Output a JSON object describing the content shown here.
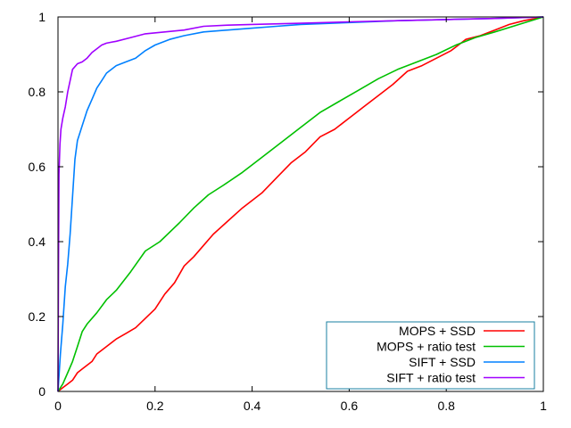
{
  "chart_data": {
    "type": "line",
    "title": "",
    "xlabel": "",
    "ylabel": "",
    "xlim": [
      0,
      1
    ],
    "ylim": [
      0,
      1
    ],
    "grid": false,
    "legend_position": "bottom-right",
    "xticks": [
      "0",
      "0.2",
      "0.4",
      "0.6",
      "0.8",
      "1"
    ],
    "yticks": [
      "0",
      "0.2",
      "0.4",
      "0.6",
      "0.8",
      "1"
    ],
    "series": [
      {
        "name": "MOPS + SSD",
        "color": "#ff0000",
        "points": [
          [
            0,
            0
          ],
          [
            0.01,
            0.01
          ],
          [
            0.02,
            0.02
          ],
          [
            0.03,
            0.03
          ],
          [
            0.04,
            0.05
          ],
          [
            0.05,
            0.06
          ],
          [
            0.07,
            0.08
          ],
          [
            0.08,
            0.1
          ],
          [
            0.1,
            0.12
          ],
          [
            0.12,
            0.14
          ],
          [
            0.14,
            0.155
          ],
          [
            0.16,
            0.17
          ],
          [
            0.18,
            0.195
          ],
          [
            0.2,
            0.22
          ],
          [
            0.22,
            0.26
          ],
          [
            0.24,
            0.29
          ],
          [
            0.26,
            0.335
          ],
          [
            0.28,
            0.36
          ],
          [
            0.3,
            0.39
          ],
          [
            0.32,
            0.42
          ],
          [
            0.35,
            0.455
          ],
          [
            0.38,
            0.49
          ],
          [
            0.42,
            0.53
          ],
          [
            0.45,
            0.57
          ],
          [
            0.48,
            0.61
          ],
          [
            0.51,
            0.64
          ],
          [
            0.54,
            0.68
          ],
          [
            0.57,
            0.7
          ],
          [
            0.6,
            0.73
          ],
          [
            0.63,
            0.76
          ],
          [
            0.66,
            0.79
          ],
          [
            0.69,
            0.82
          ],
          [
            0.72,
            0.855
          ],
          [
            0.75,
            0.87
          ],
          [
            0.78,
            0.89
          ],
          [
            0.81,
            0.91
          ],
          [
            0.84,
            0.94
          ],
          [
            0.87,
            0.95
          ],
          [
            0.9,
            0.965
          ],
          [
            0.93,
            0.98
          ],
          [
            0.96,
            0.99
          ],
          [
            1.0,
            1.0
          ]
        ]
      },
      {
        "name": "MOPS + ratio test",
        "color": "#00c000",
        "points": [
          [
            0,
            0
          ],
          [
            0.01,
            0.02
          ],
          [
            0.02,
            0.05
          ],
          [
            0.03,
            0.08
          ],
          [
            0.04,
            0.12
          ],
          [
            0.05,
            0.16
          ],
          [
            0.06,
            0.18
          ],
          [
            0.08,
            0.21
          ],
          [
            0.1,
            0.245
          ],
          [
            0.12,
            0.27
          ],
          [
            0.15,
            0.32
          ],
          [
            0.18,
            0.375
          ],
          [
            0.21,
            0.4
          ],
          [
            0.25,
            0.45
          ],
          [
            0.28,
            0.49
          ],
          [
            0.31,
            0.525
          ],
          [
            0.34,
            0.55
          ],
          [
            0.38,
            0.585
          ],
          [
            0.42,
            0.625
          ],
          [
            0.46,
            0.665
          ],
          [
            0.5,
            0.705
          ],
          [
            0.54,
            0.745
          ],
          [
            0.58,
            0.775
          ],
          [
            0.62,
            0.805
          ],
          [
            0.66,
            0.835
          ],
          [
            0.7,
            0.86
          ],
          [
            0.74,
            0.88
          ],
          [
            0.78,
            0.9
          ],
          [
            0.82,
            0.925
          ],
          [
            0.86,
            0.945
          ],
          [
            0.9,
            0.96
          ],
          [
            0.95,
            0.98
          ],
          [
            1.0,
            1.0
          ]
        ]
      },
      {
        "name": "SIFT + SSD",
        "color": "#0080ff",
        "points": [
          [
            0,
            0
          ],
          [
            0.002,
            0.04
          ],
          [
            0.005,
            0.1
          ],
          [
            0.01,
            0.18
          ],
          [
            0.015,
            0.28
          ],
          [
            0.02,
            0.34
          ],
          [
            0.025,
            0.42
          ],
          [
            0.03,
            0.52
          ],
          [
            0.035,
            0.62
          ],
          [
            0.04,
            0.67
          ],
          [
            0.05,
            0.71
          ],
          [
            0.06,
            0.75
          ],
          [
            0.07,
            0.78
          ],
          [
            0.08,
            0.81
          ],
          [
            0.09,
            0.83
          ],
          [
            0.1,
            0.85
          ],
          [
            0.12,
            0.87
          ],
          [
            0.14,
            0.88
          ],
          [
            0.16,
            0.89
          ],
          [
            0.18,
            0.91
          ],
          [
            0.2,
            0.925
          ],
          [
            0.23,
            0.94
          ],
          [
            0.26,
            0.95
          ],
          [
            0.3,
            0.96
          ],
          [
            0.35,
            0.965
          ],
          [
            0.4,
            0.97
          ],
          [
            0.45,
            0.975
          ],
          [
            0.5,
            0.98
          ],
          [
            0.6,
            0.985
          ],
          [
            0.7,
            0.99
          ],
          [
            0.8,
            0.993
          ],
          [
            0.9,
            0.996
          ],
          [
            1.0,
            1.0
          ]
        ]
      },
      {
        "name": "SIFT + ratio test",
        "color": "#a000ff",
        "points": [
          [
            0,
            0
          ],
          [
            0.001,
            0.3
          ],
          [
            0.002,
            0.58
          ],
          [
            0.004,
            0.66
          ],
          [
            0.006,
            0.7
          ],
          [
            0.01,
            0.73
          ],
          [
            0.015,
            0.76
          ],
          [
            0.02,
            0.8
          ],
          [
            0.025,
            0.83
          ],
          [
            0.03,
            0.86
          ],
          [
            0.04,
            0.875
          ],
          [
            0.05,
            0.88
          ],
          [
            0.06,
            0.89
          ],
          [
            0.07,
            0.905
          ],
          [
            0.08,
            0.915
          ],
          [
            0.09,
            0.925
          ],
          [
            0.1,
            0.93
          ],
          [
            0.12,
            0.935
          ],
          [
            0.15,
            0.945
          ],
          [
            0.18,
            0.955
          ],
          [
            0.22,
            0.96
          ],
          [
            0.26,
            0.965
          ],
          [
            0.3,
            0.975
          ],
          [
            0.35,
            0.978
          ],
          [
            0.4,
            0.98
          ],
          [
            0.5,
            0.983
          ],
          [
            0.6,
            0.987
          ],
          [
            0.7,
            0.99
          ],
          [
            0.8,
            0.993
          ],
          [
            0.9,
            0.996
          ],
          [
            1.0,
            1.0
          ]
        ]
      }
    ]
  }
}
